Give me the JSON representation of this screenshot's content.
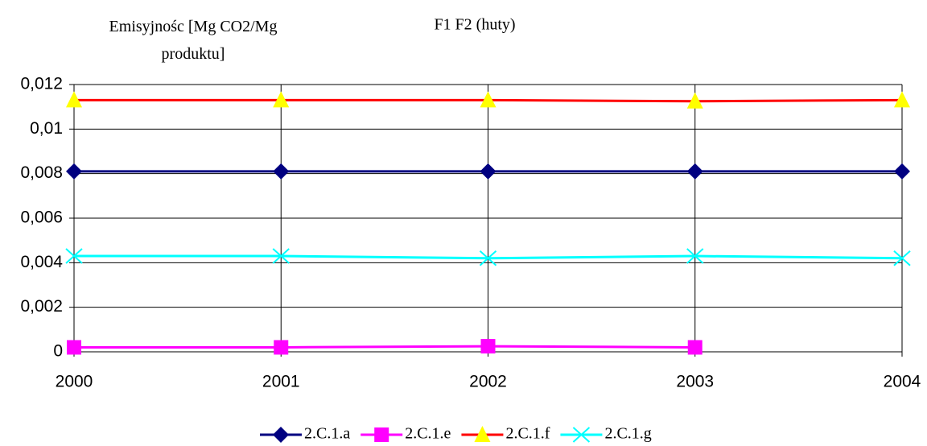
{
  "chart_data": {
    "type": "line",
    "title": "F1 F2 (huty)",
    "y_label": "Emisyjnośc [Mg CO2/Mg produktu]",
    "x": [
      2000,
      2001,
      2002,
      2003,
      2004
    ],
    "xlim": [
      2000,
      2004
    ],
    "xticks": [
      2000,
      2001,
      2002,
      2003,
      2004
    ],
    "ylim": [
      0,
      0.012
    ],
    "yticks": [
      0,
      {
        "value": 0.002,
        "label": "0,002"
      },
      {
        "value": 0.004,
        "label": "0,004"
      },
      {
        "value": 0.006,
        "label": "0,006"
      },
      {
        "value": 0.008,
        "label": "0,008"
      },
      {
        "value": 0.01,
        "label": "0,01"
      },
      {
        "value": 0.012,
        "label": "0,012"
      }
    ],
    "grid": true,
    "legend": "bottom",
    "series": [
      {
        "name": "2.C.1.a",
        "color": "#000080",
        "marker": "diamond",
        "marker_color": "#000080",
        "values": [
          0.0081,
          0.0081,
          0.0081,
          0.0081,
          0.0081
        ]
      },
      {
        "name": "2.C.1.e",
        "color": "#ff00ff",
        "marker": "square",
        "marker_color": "#ff00ff",
        "values": [
          0.0002,
          0.0002,
          0.00025,
          0.0002,
          null
        ]
      },
      {
        "name": "2.C.1.f",
        "color": "#ff0000",
        "marker": "triangle",
        "marker_color": "#ffff00",
        "values": [
          0.0113,
          0.0113,
          0.0113,
          0.01125,
          0.0113
        ]
      },
      {
        "name": "2.C.1.g",
        "color": "#00ffff",
        "marker": "x",
        "marker_color": "#00ffff",
        "values": [
          0.0043,
          0.0043,
          0.0042,
          0.0043,
          0.0042
        ]
      }
    ]
  }
}
